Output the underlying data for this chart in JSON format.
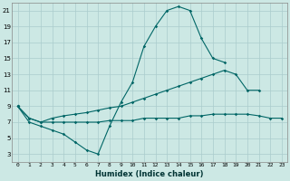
{
  "xlabel": "Humidex (Indice chaleur)",
  "background_color": "#cce8e4",
  "grid_color": "#aacccc",
  "line_color": "#006666",
  "xlim": [
    -0.5,
    23.5
  ],
  "ylim": [
    2,
    22
  ],
  "xticks": [
    0,
    1,
    2,
    3,
    4,
    5,
    6,
    7,
    8,
    9,
    10,
    11,
    12,
    13,
    14,
    15,
    16,
    17,
    18,
    19,
    20,
    21,
    22,
    23
  ],
  "yticks": [
    3,
    5,
    7,
    9,
    11,
    13,
    15,
    17,
    19,
    21
  ],
  "line1_x": [
    0,
    1,
    2,
    3,
    4,
    5,
    6,
    7,
    8,
    9,
    10,
    11,
    12,
    13,
    14,
    15,
    16,
    17,
    18
  ],
  "line1_y": [
    9,
    7,
    6.5,
    6,
    5.5,
    4.5,
    3.5,
    3,
    6.5,
    9.5,
    12,
    16.5,
    19,
    21,
    21.5,
    21,
    17.5,
    15,
    14.5
  ],
  "line2_x": [
    0,
    1,
    2,
    3,
    4,
    5,
    6,
    7,
    8,
    9,
    10,
    11,
    12,
    13,
    14,
    15,
    16,
    17,
    18,
    19,
    20,
    21
  ],
  "line2_y": [
    9,
    7.5,
    7,
    7.5,
    7.8,
    8,
    8.2,
    8.5,
    8.8,
    9,
    9.5,
    10,
    10.5,
    11,
    11.5,
    12,
    12.5,
    13,
    13.5,
    13,
    11,
    11
  ],
  "line3_x": [
    0,
    1,
    2,
    3,
    4,
    5,
    6,
    7,
    8,
    9,
    10,
    11,
    12,
    13,
    14,
    15,
    16,
    17,
    18,
    19,
    20,
    21,
    22,
    23
  ],
  "line3_y": [
    9,
    7.5,
    7,
    7,
    7,
    7,
    7,
    7,
    7.2,
    7.2,
    7.2,
    7.5,
    7.5,
    7.5,
    7.5,
    7.8,
    7.8,
    8,
    8,
    8,
    8,
    7.8,
    7.5,
    7.5
  ]
}
